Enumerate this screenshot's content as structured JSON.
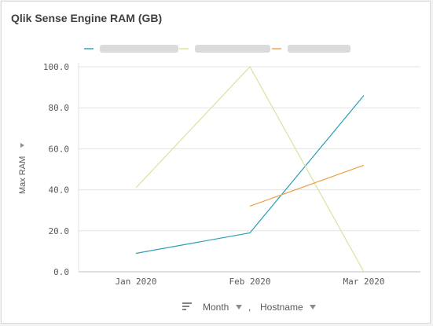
{
  "chart_data": {
    "type": "line",
    "title": "Qlik Sense Engine RAM (GB)",
    "ylabel": "Max RAM",
    "categories": [
      "Jan 2020",
      "Feb 2020",
      "Mar 2020"
    ],
    "ylim": [
      0,
      100
    ],
    "yticks": [
      "0.0",
      "20.0",
      "40.0",
      "60.0",
      "80.0",
      "100.0"
    ],
    "grid": true,
    "legend": "top",
    "series": [
      {
        "color": "#2a9fb5",
        "values": [
          9,
          19,
          86
        ]
      },
      {
        "color": "#d4e59b",
        "values": [
          41,
          100,
          0
        ]
      },
      {
        "color": "#f0a04b",
        "values": [
          null,
          32,
          52
        ]
      }
    ]
  },
  "footer": {
    "sort_icon": "sort-icon",
    "dim1": "Month",
    "separator": ",",
    "dim2": "Hostname"
  }
}
